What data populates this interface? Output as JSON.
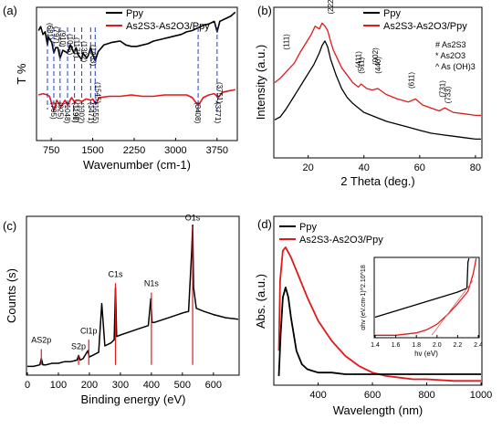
{
  "figure": {
    "panel_count": 4
  },
  "chart_data": [
    {
      "panel": "(a)",
      "type": "line",
      "xlabel": "Wavenumber (cm-1)",
      "ylabel": "T %",
      "xlim": [
        500,
        4100
      ],
      "xticks": [
        750,
        1500,
        2250,
        3000,
        3750
      ],
      "ylim": [
        0,
        1
      ],
      "legend": "top-right",
      "series": [
        {
          "name": "Ppy",
          "color": "#000000",
          "x": [
            520,
            560,
            600,
            640,
            681,
            700,
            760,
            797,
            830,
            870,
            910,
            960,
            1045,
            1080,
            1100,
            1160,
            1200,
            1230,
            1300,
            1320,
            1390,
            1420,
            1463,
            1490,
            1545,
            1600,
            1700,
            1850,
            2000,
            2100,
            2200,
            2300,
            2400,
            2500,
            2600,
            2700,
            2800,
            2900,
            3000,
            3100,
            3200,
            3300,
            3400,
            3500,
            3600,
            3700,
            3751,
            3800,
            3900,
            4000,
            4080
          ],
          "y": [
            0.83,
            0.86,
            0.8,
            0.82,
            0.72,
            0.78,
            0.74,
            0.66,
            0.7,
            0.7,
            0.62,
            0.68,
            0.66,
            0.7,
            0.72,
            0.66,
            0.7,
            0.65,
            0.61,
            0.66,
            0.62,
            0.64,
            0.7,
            0.66,
            0.6,
            0.67,
            0.72,
            0.74,
            0.75,
            0.72,
            0.71,
            0.71,
            0.72,
            0.73,
            0.75,
            0.76,
            0.77,
            0.78,
            0.79,
            0.8,
            0.82,
            0.83,
            0.85,
            0.87,
            0.88,
            0.9,
            0.82,
            0.9,
            0.92,
            0.94,
            0.97
          ]
        },
        {
          "name": "As2S3-As2O3/Ppy",
          "color": "#e01a1a",
          "x": [
            520,
            600,
            680,
            720,
            795,
            850,
            925,
            1000,
            1048,
            1090,
            1120,
            1180,
            1196,
            1250,
            1304,
            1380,
            1471,
            1500,
            1555,
            1620,
            1800,
            2000,
            2200,
            2400,
            2600,
            2800,
            3000,
            3200,
            3300,
            3408,
            3500,
            3600,
            3700,
            3771,
            3850,
            3950,
            4080
          ],
          "y": [
            0.34,
            0.35,
            0.34,
            0.33,
            0.22,
            0.3,
            0.25,
            0.3,
            0.26,
            0.3,
            0.32,
            0.28,
            0.3,
            0.3,
            0.29,
            0.31,
            0.3,
            0.31,
            0.27,
            0.32,
            0.33,
            0.33,
            0.34,
            0.33,
            0.33,
            0.34,
            0.34,
            0.34,
            0.32,
            0.26,
            0.32,
            0.34,
            0.35,
            0.32,
            0.36,
            0.37,
            0.38
          ]
        }
      ],
      "annotations_ppy": [
        "(681)",
        "(797)",
        "(910)",
        "(1045)",
        "(1171)",
        "(1302)",
        "(1463)",
        "(1545)",
        "(3751)"
      ],
      "annotations_composite": [
        "(795)",
        "(925)",
        "(1048)",
        "(1197)",
        "(1196)",
        "(1302)",
        "(1471)",
        "(1555)",
        "(3408)",
        "(3771)"
      ]
    },
    {
      "panel": "(b)",
      "type": "line",
      "xlabel": "2 Theta (deg.)",
      "ylabel": "Intensity (a.u.)",
      "xlim": [
        8,
        82
      ],
      "xticks": [
        20,
        40,
        60,
        80
      ],
      "ylim": [
        0,
        1
      ],
      "legend": "top-right",
      "series": [
        {
          "name": "Ppy",
          "color": "#000000",
          "x": [
            8,
            10,
            12,
            14,
            16,
            18,
            20,
            22,
            24,
            25,
            26,
            27,
            28,
            30,
            32,
            34,
            36,
            38,
            40,
            44,
            48,
            52,
            56,
            60,
            64,
            68,
            72,
            76,
            80,
            82
          ],
          "y": [
            0.25,
            0.27,
            0.32,
            0.38,
            0.44,
            0.5,
            0.56,
            0.62,
            0.7,
            0.75,
            0.78,
            0.74,
            0.66,
            0.55,
            0.46,
            0.4,
            0.36,
            0.33,
            0.3,
            0.27,
            0.24,
            0.22,
            0.2,
            0.18,
            0.16,
            0.15,
            0.14,
            0.13,
            0.12,
            0.12
          ]
        },
        {
          "name": "As2S3-As2O3/Ppy",
          "color": "#e01a1a",
          "x": [
            8,
            10,
            12,
            13.5,
            15,
            17,
            19,
            21,
            22.5,
            24,
            25,
            26,
            27,
            28,
            29,
            30,
            32,
            34,
            36,
            38,
            39,
            41,
            43,
            45,
            48,
            52,
            56,
            58.5,
            61,
            64,
            67,
            69,
            72,
            76,
            80,
            82
          ],
          "y": [
            0.5,
            0.53,
            0.57,
            0.6,
            0.63,
            0.7,
            0.76,
            0.82,
            0.88,
            0.86,
            0.9,
            0.88,
            0.85,
            0.78,
            0.72,
            0.68,
            0.6,
            0.55,
            0.5,
            0.47,
            0.49,
            0.46,
            0.45,
            0.46,
            0.42,
            0.39,
            0.37,
            0.39,
            0.35,
            0.33,
            0.31,
            0.33,
            0.3,
            0.29,
            0.28,
            0.28
          ]
        }
      ],
      "legend_markers": [
        "# As2S3",
        "* As2O3",
        "^ As (OH)3"
      ],
      "peak_labels": [
        "(111)",
        "(222)",
        "(411)",
        "(511)",
        "(002)",
        "(440)",
        "(611)",
        "(731)",
        "(733)"
      ]
    },
    {
      "panel": "(c)",
      "type": "line",
      "xlabel": "Binding energy (eV)",
      "ylabel": "Counts (s)",
      "xlim": [
        0,
        680
      ],
      "xticks": [
        0,
        100,
        200,
        300,
        400,
        500,
        600
      ],
      "ylim": [
        0,
        1
      ],
      "series": [
        {
          "name": "",
          "color": "#000000",
          "x": [
            0,
            20,
            40,
            45,
            50,
            60,
            80,
            100,
            120,
            140,
            160,
            165,
            170,
            180,
            195,
            200,
            210,
            230,
            240,
            250,
            270,
            280,
            284,
            288,
            300,
            330,
            360,
            390,
            398,
            402,
            410,
            440,
            470,
            500,
            520,
            530,
            533,
            536,
            545,
            570,
            600,
            640,
            680
          ],
          "y": [
            0.05,
            0.05,
            0.06,
            0.1,
            0.06,
            0.06,
            0.07,
            0.07,
            0.08,
            0.08,
            0.09,
            0.12,
            0.09,
            0.1,
            0.15,
            0.11,
            0.12,
            0.14,
            0.45,
            0.18,
            0.2,
            0.22,
            0.55,
            0.24,
            0.25,
            0.27,
            0.29,
            0.31,
            0.48,
            0.33,
            0.33,
            0.35,
            0.37,
            0.39,
            0.4,
            0.78,
            0.95,
            0.55,
            0.42,
            0.4,
            0.38,
            0.36,
            0.35
          ]
        }
      ],
      "peak_labels": [
        "AS2p",
        "S2p",
        "Cl1p",
        "C1s",
        "N1s",
        "O1s"
      ],
      "peak_positions": [
        45,
        165,
        198,
        284,
        400,
        533
      ]
    },
    {
      "panel": "(d)",
      "type": "line",
      "xlabel": "Wavelength (nm)",
      "ylabel": "Abs. (a.u.)",
      "xlim": [
        240,
        1000
      ],
      "xticks": [
        400,
        600,
        800,
        1000
      ],
      "ylim": [
        0,
        1
      ],
      "legend": "top-left",
      "series": [
        {
          "name": "Ppy",
          "color": "#000000",
          "x": [
            255,
            262,
            270,
            280,
            290,
            300,
            320,
            340,
            360,
            380,
            400,
            450,
            500,
            600,
            700,
            800,
            900,
            1000
          ],
          "y": [
            0.05,
            0.3,
            0.52,
            0.58,
            0.52,
            0.4,
            0.2,
            0.12,
            0.09,
            0.08,
            0.07,
            0.07,
            0.06,
            0.06,
            0.06,
            0.06,
            0.06,
            0.06
          ]
        },
        {
          "name": "As2S3-As2O3/Ppy",
          "color": "#e01a1a",
          "x": [
            255,
            260,
            270,
            280,
            300,
            330,
            360,
            400,
            450,
            500,
            550,
            600,
            650,
            700,
            750,
            800,
            900,
            1000
          ],
          "y": [
            0.2,
            0.62,
            0.8,
            0.82,
            0.76,
            0.64,
            0.52,
            0.38,
            0.26,
            0.17,
            0.11,
            0.07,
            0.05,
            0.04,
            0.03,
            0.03,
            0.02,
            0.02
          ]
        }
      ],
      "inset": {
        "xlabel": "hv (eV)",
        "ylabel": "αhv (eV.cm-1)^2.10^18",
        "xlim": [
          1.4,
          2.4
        ],
        "xticks": [
          "1.4",
          "1.6",
          "1.8",
          "2.0",
          "2.2",
          "2.4"
        ],
        "series": [
          {
            "color": "#000000",
            "x": [
              1.4,
              1.6,
              1.8,
              2.0,
              2.2,
              2.29,
              2.3,
              2.31
            ],
            "y": [
              0.25,
              0.33,
              0.41,
              0.49,
              0.57,
              0.62,
              0.95,
              1.0
            ]
          },
          {
            "color": "#e01a1a",
            "x": [
              1.4,
              1.6,
              1.8,
              1.9,
              2.0,
              2.1,
              2.2,
              2.3,
              2.35,
              2.38
            ],
            "y": [
              0.02,
              0.02,
              0.05,
              0.09,
              0.16,
              0.28,
              0.42,
              0.58,
              0.8,
              1.0
            ]
          }
        ],
        "fit_lines": [
          {
            "color": "#e06060",
            "x": [
              1.95,
              2.35
            ],
            "y": [
              0.02,
              0.72
            ]
          }
        ]
      }
    }
  ]
}
